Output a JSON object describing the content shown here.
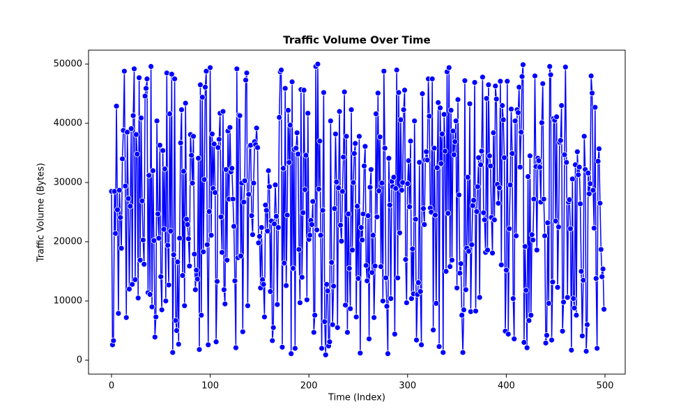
{
  "chart_data": {
    "type": "line",
    "title": "Traffic Volume Over Time",
    "x_label": "Time (Index)",
    "y_label": "Traffic Volume (Bytes)",
    "color": "#0000ff",
    "marker": true,
    "xlim": [
      -23.3,
      520.5
    ],
    "xticks": [
      0,
      100,
      200,
      300,
      400,
      500
    ],
    "ylim": [
      -2353,
      52353
    ],
    "yticks": [
      0,
      10000,
      20000,
      30000,
      40000,
      50000
    ],
    "values": [
      28500,
      2600,
      3300,
      28500,
      21400,
      42900,
      25400,
      7900,
      28700,
      24100,
      18900,
      34000,
      38800,
      48800,
      29400,
      7200,
      38500,
      27300,
      12000,
      26000,
      39100,
      12800,
      41300,
      49200,
      13600,
      38100,
      34800,
      10500,
      47700,
      16900,
      40900,
      26900,
      20300,
      16200,
      44600,
      45900,
      47500,
      11400,
      31200,
      11100,
      49600,
      9000,
      32000,
      20200,
      3900,
      7300,
      40400,
      24700,
      20600,
      36300,
      14100,
      8500,
      35400,
      22100,
      32300,
      10000,
      48500,
      19400,
      12700,
      41600,
      21800,
      48300,
      1300,
      17800,
      47500,
      6700,
      5000,
      16600,
      2700,
      20600,
      36700,
      42300,
      14300,
      31900,
      9200,
      43400,
      23800,
      22900,
      20500,
      15900,
      38100,
      34600,
      29900,
      37800,
      17900,
      11900,
      15200,
      13700,
      34100,
      1800,
      46500,
      7600,
      44400,
      18300,
      30500,
      46100,
      48800,
      19500,
      2600,
      25100,
      49400,
      21100,
      38200,
      29000,
      36500,
      28300,
      3100,
      13300,
      35900,
      37300,
      41700,
      24200,
      18200,
      42000,
      11900,
      9500,
      32200,
      16900,
      38700,
      27200,
      39300,
      31800,
      32400,
      27200,
      22600,
      13400,
      2100,
      49200,
      17300,
      41400,
      41300,
      17600,
      29900,
      4800,
      26700,
      30300,
      47300,
      48500,
      9200,
      28000,
      36200,
      36300,
      24400,
      21200,
      29900,
      36900,
      36400,
      39200,
      35900,
      19800,
      20900,
      12200,
      22400,
      13600,
      12800,
      7300,
      26200,
      25300,
      21800,
      32000,
      29300,
      11600,
      23500,
      3300,
      5500,
      23000,
      29600,
      24300,
      9400,
      22400,
      41000,
      48700,
      49000,
      2200,
      32400,
      16400,
      45900,
      12600,
      24500,
      42200,
      33400,
      39700,
      1100,
      47000,
      15500,
      35600,
      2000,
      35800,
      38400,
      34800,
      18700,
      9700,
      45700,
      14000,
      24900,
      45600,
      28800,
      34600,
      10200,
      41700,
      20400,
      21100,
      23600,
      22900,
      26800,
      4700,
      7600,
      49600,
      22000,
      50000,
      28900,
      37000,
      21100,
      2000,
      25300,
      45200,
      6500,
      900,
      12800,
      11700,
      2400,
      3100,
      40400,
      16500,
      6000,
      12500,
      25600,
      38200,
      30100,
      5500,
      29100,
      42000,
      22800,
      20100,
      28500,
      34300,
      45300,
      9300,
      37800,
      4700,
      24700,
      15500,
      8700,
      42300,
      18600,
      30000,
      34900,
      36600,
      7300,
      26000,
      13800,
      37800,
      1200,
      22400,
      20300,
      24700,
      32800,
      36100,
      16000,
      13400,
      24400,
      3600,
      29200,
      32200,
      14800,
      21100,
      7200,
      15900,
      41600,
      24200,
      45100,
      28600,
      37700,
      15800,
      29900,
      10000,
      48800,
      35800,
      13900,
      9100,
      1100,
      34100,
      26200,
      10400,
      30200,
      29300,
      30900,
      4400,
      29000,
      49000,
      13900,
      45200,
      21500,
      40600,
      28700,
      30000,
      42300,
      45600,
      17000,
      9700,
      29800,
      33700,
      25900,
      37000,
      10400,
      18800,
      11200,
      40400,
      23800,
      3400,
      11100,
      13100,
      33400,
      11600,
      2600,
      45000,
      25600,
      22900,
      33800,
      35200,
      33800,
      47500,
      41200,
      25700,
      25000,
      47500,
      5100,
      35800,
      24500,
      9600,
      32500,
      43500,
      2300,
      42600,
      33200,
      38200,
      1300,
      41500,
      35300,
      15000,
      48700,
      24800,
      49400,
      15800,
      42200,
      16900,
      38700,
      34700,
      36900,
      40400,
      12200,
      44000,
      27900,
      14700,
      16300,
      7600,
      1300,
      8500,
      47200,
      11900,
      18900,
      30900,
      18400,
      43300,
      8200,
      19500,
      26100,
      27000,
      46900,
      8300,
      25100,
      29300,
      34200,
      10600,
      33000,
      35300,
      47800,
      24900,
      23700,
      18200,
      44200,
      18600,
      46500,
      34500,
      32800,
      24100,
      18100,
      38400,
      23700,
      46300,
      44100,
      29700,
      26500,
      29100,
      47100,
      16100,
      43000,
      40600,
      34200,
      4900,
      15200,
      47100,
      4400,
      22200,
      29600,
      42400,
      34900,
      10400,
      3600,
      40400,
      21000,
      42300,
      41800,
      46100,
      32600,
      38500,
      47900,
      49900,
      3000,
      19200,
      11800,
      2100,
      31000,
      6700,
      34500,
      7600,
      21200,
      20300,
      27200,
      48000,
      32700,
      18600,
      34100,
      33700,
      32600,
      26700,
      40100,
      46700,
      27200,
      21000,
      2900,
      4200,
      23200,
      9600,
      49600,
      48200,
      3400,
      13200,
      40800,
      40500,
      23500,
      41100,
      12300,
      22500,
      36800,
      37100,
      43000,
      4900,
      9800,
      34700,
      49500,
      33400,
      10600,
      26700,
      27100,
      22200,
      1700,
      30600,
      10400,
      8800,
      33000,
      7600,
      35200,
      31300,
      32600,
      26400,
      15000,
      4100,
      13500,
      37800,
      32200,
      1500,
      6000,
      31600,
      28100,
      29800,
      48000,
      45100,
      28700,
      22300,
      42700,
      13800,
      2000,
      33600,
      35700,
      26500,
      18700,
      14100,
      15400,
      8600
    ]
  }
}
